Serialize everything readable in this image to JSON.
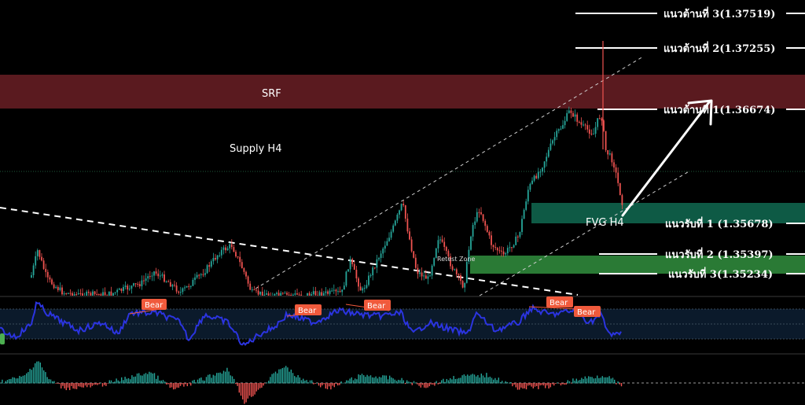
{
  "chart_data": {
    "type": "candlestick",
    "zones": {
      "srf": {
        "label": "SRF",
        "color": "#5a1a1f"
      },
      "supply": {
        "label": "Supply H4"
      },
      "fvg": {
        "label": "FVG H4",
        "color": "#0e5a45"
      },
      "retest": {
        "label": "Retest Zone",
        "color": "#2a7a35"
      }
    },
    "levels": [
      {
        "label": "แนวต้านที่ 3(1.37519)",
        "price": 1.37519
      },
      {
        "label": "แนวต้านที่ 2(1.37255)",
        "price": 1.37255
      },
      {
        "label": "แนวต้านที่ 1(1.36674)",
        "price": 1.36674
      },
      {
        "label": "แนวรับที่ 1 (1.35678)",
        "price": 1.35678
      },
      {
        "label": "แนวรับที่ 2 (1.35397)",
        "price": 1.35397
      },
      {
        "label": "แนวรับที่ 3(1.35234)",
        "price": 1.35234
      }
    ],
    "indicator_badges": [
      "Bear",
      "Bear",
      "Bear",
      "Bear",
      "Bear"
    ],
    "colors": {
      "bull": "#26a69a",
      "bear": "#ef5350",
      "rsi": "#2b34e0",
      "badge": "#f05a3c"
    }
  }
}
